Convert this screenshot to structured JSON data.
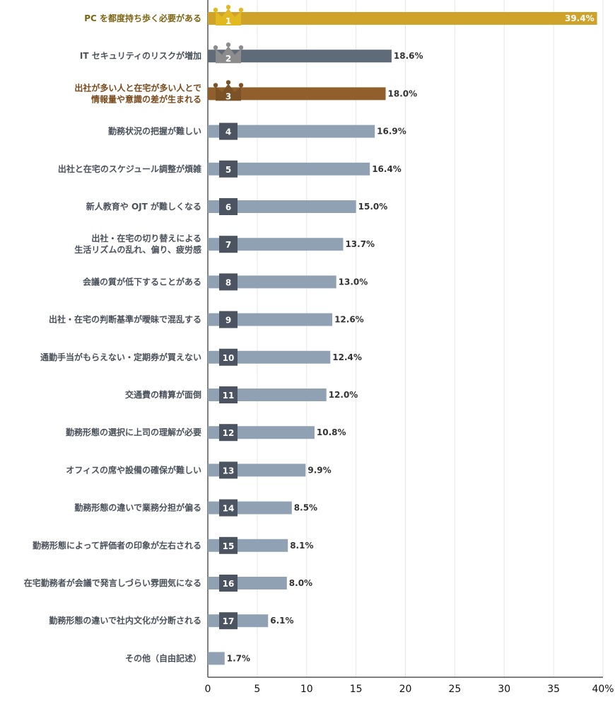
{
  "chart_data": {
    "type": "bar",
    "orientation": "horizontal",
    "title": "",
    "xlabel": "",
    "ylabel": "",
    "xlim": [
      0,
      40
    ],
    "x_ticks": [
      "0",
      "5",
      "10",
      "15",
      "20",
      "25",
      "30",
      "35",
      "40%"
    ],
    "grid": true,
    "categories": [
      [
        "PC を都度持ち歩く必要がある"
      ],
      [
        "IT セキュリティのリスクが増加"
      ],
      [
        "出社が多い人と在宅が多い人とで",
        "情報量や意識の差が生まれる"
      ],
      [
        "勤務状況の把握が難しい"
      ],
      [
        "出社と在宅のスケジュール調整が煩雑"
      ],
      [
        "新人教育や OJT が難しくなる"
      ],
      [
        "出社・在宅の切り替えによる",
        "生活リズムの乱れ、偏り、疲労感"
      ],
      [
        "会議の質が低下することがある"
      ],
      [
        "出社・在宅の判断基準が曖昧で混乱する"
      ],
      [
        "通勤手当がもらえない・定期券が買えない"
      ],
      [
        "交通費の精算が面倒"
      ],
      [
        "勤務形態の選択に上司の理解が必要"
      ],
      [
        "オフィスの席や設備の確保が難しい"
      ],
      [
        "勤務形態の違いで業務分担が偏る"
      ],
      [
        "勤務形態によって評価者の印象が左右される"
      ],
      [
        "在宅勤務者が会議で発言しづらい雰囲気になる"
      ],
      [
        "勤務形態の違いで社内文化が分断される"
      ],
      [
        "その他（自由記述）"
      ]
    ],
    "values": [
      39.4,
      18.6,
      18.0,
      16.9,
      16.4,
      15.0,
      13.7,
      13.0,
      12.6,
      12.4,
      12.0,
      10.8,
      9.9,
      8.5,
      8.1,
      8.0,
      6.1,
      1.7
    ],
    "value_labels": [
      "39.4%",
      "18.6%",
      "18.0%",
      "16.9%",
      "16.4%",
      "15.0%",
      "13.7%",
      "13.0%",
      "12.6%",
      "12.4%",
      "12.0%",
      "10.8%",
      "9.9%",
      "8.5%",
      "8.1%",
      "8.0%",
      "6.1%",
      "1.7%"
    ],
    "ranks": [
      "1",
      "2",
      "3",
      "4",
      "5",
      "6",
      "7",
      "8",
      "9",
      "10",
      "11",
      "12",
      "13",
      "14",
      "15",
      "16",
      "17",
      ""
    ],
    "colors": {
      "bar_rank1": "#cfa32a",
      "bar_rank2": "#5f6b78",
      "bar_rank3": "#915f2c",
      "bar_default": "#8fa1b2",
      "crown_rank1": "#e2b920",
      "crown_rank2": "#8c8c8c",
      "crown_rank3": "#7b5228",
      "badge_default": "#4b5460",
      "label_rank1": "#7d6413",
      "label_rank3": "#7a4a1c",
      "label_default": "#4a515b",
      "grid": "#e6e6e6",
      "axis": "#555555"
    }
  }
}
